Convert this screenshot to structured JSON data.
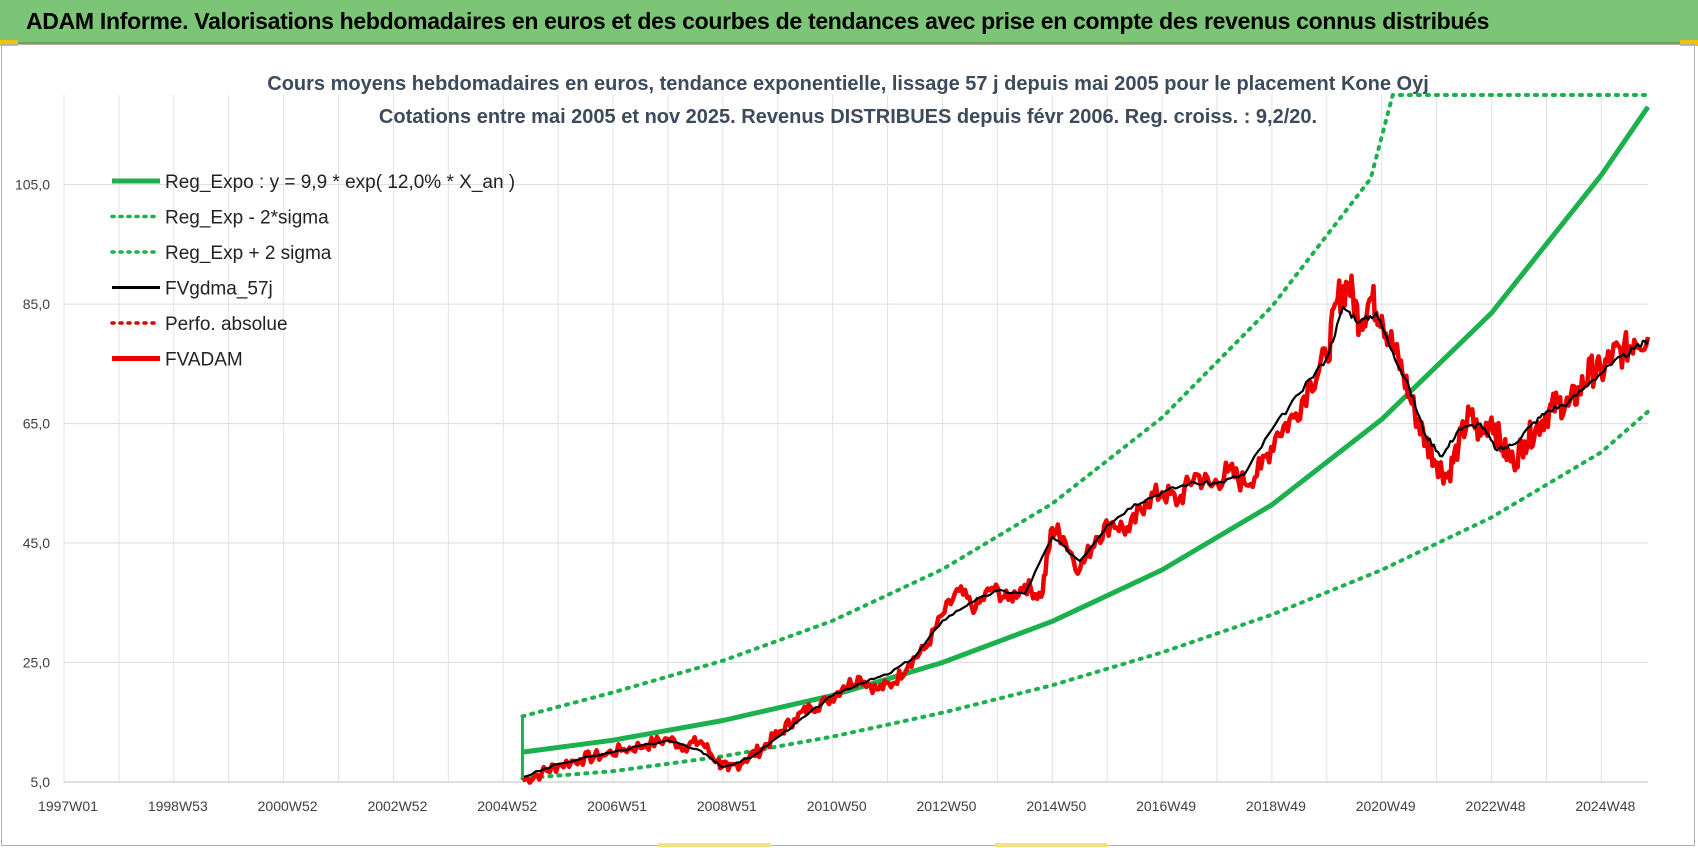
{
  "header": {
    "title": "ADAM Informe. Valorisations hebdomadaires en euros et des courbes de tendances avec prise en compte des revenus connus distribués"
  },
  "chart_data": {
    "type": "line",
    "title_lines": [
      "Cours moyens hebdomadaires en euros, tendance exponentielle, lissage 57 j depuis mai 2005 pour le placement Kone Oyj",
      "Cotations entre mai 2005 et nov 2025. Revenus DISTRIBUES depuis févr 2006. Reg. croiss. : 9,2/20."
    ],
    "xlabel": "",
    "ylabel": "",
    "x_range": [
      1997.0,
      2025.85
    ],
    "ylim": [
      5.0,
      120.0
    ],
    "y_ticks": [
      "105,0",
      "85,0",
      "65,0",
      "45,0",
      "25,0",
      "5,0"
    ],
    "y_tick_values": [
      105,
      85,
      65,
      45,
      25,
      5
    ],
    "x_ticks": [
      "1997W01",
      "1998W53",
      "2000W52",
      "2002W52",
      "2004W52",
      "2006W51",
      "2008W51",
      "2010W50",
      "2012W50",
      "2014W50",
      "2016W49",
      "2018W49",
      "2020W49",
      "2022W48",
      "2024W48"
    ],
    "x_tick_values": [
      1997,
      1999,
      2001,
      2003,
      2005,
      2007,
      2009,
      2011,
      2013,
      2015,
      2017,
      2019,
      2021,
      2023,
      2025
    ],
    "grid": "vertical-and-horizontal",
    "legend_position": "top-left",
    "legend": [
      {
        "label": "Reg_Expo : y = 9,9 * exp( 12,0% *  X_an )",
        "color": "#1db04e",
        "style": "solid-thick"
      },
      {
        "label": "Reg_Exp - 2*sigma",
        "color": "#1db04e",
        "style": "dotted"
      },
      {
        "label": "Reg_Exp + 2 sigma",
        "color": "#1db04e",
        "style": "dotted"
      },
      {
        "label": "FVgdma_57j",
        "color": "#000000",
        "style": "solid"
      },
      {
        "label": "Perfo. absolue",
        "color": "#e00000",
        "style": "dotted"
      },
      {
        "label": "FVADAM",
        "color": "#ee0000",
        "style": "solid-thick"
      }
    ],
    "series": [
      {
        "name": "Reg_Expo : y = 9,9 * exp( 12,0% *  X_an )",
        "color": "#1db04e",
        "x": [
          2005.35,
          2007.0,
          2009.0,
          2011.0,
          2013.0,
          2015.0,
          2017.0,
          2019.0,
          2021.0,
          2023.0,
          2025.0,
          2025.85
        ],
        "values": [
          10.0,
          12.0,
          15.3,
          19.5,
          25.0,
          31.9,
          40.5,
          51.4,
          65.7,
          83.5,
          106.6,
          118.0
        ]
      },
      {
        "name": "Reg_Exp - 2*sigma",
        "color": "#1db04e",
        "x": [
          2005.35,
          2007.0,
          2009.0,
          2011.0,
          2013.0,
          2015.0,
          2017.0,
          2019.0,
          2021.0,
          2023.0,
          2025.0,
          2025.85
        ],
        "values": [
          5.6,
          6.8,
          9.3,
          12.6,
          16.6,
          21.2,
          26.7,
          33.0,
          40.5,
          49.3,
          60.2,
          67.0
        ]
      },
      {
        "name": "Reg_Exp + 2 sigma",
        "color": "#1db04e",
        "x": [
          2005.35,
          2007.0,
          2009.0,
          2011.0,
          2013.0,
          2015.0,
          2017.0,
          2019.0,
          2020.8,
          2021.2,
          2025.85
        ],
        "values": [
          16.0,
          20.0,
          25.3,
          32.0,
          40.6,
          51.6,
          66.0,
          84.6,
          106.0,
          120.0,
          120.0
        ]
      },
      {
        "name": "FVgdma_57j",
        "color": "#000000",
        "x": [
          2005.35,
          2006.0,
          2007.0,
          2008.0,
          2008.6,
          2009.0,
          2009.5,
          2010.0,
          2010.5,
          2011.0,
          2011.5,
          2012.0,
          2012.5,
          2013.0,
          2013.5,
          2014.0,
          2014.5,
          2015.0,
          2015.5,
          2016.0,
          2016.5,
          2017.0,
          2017.5,
          2018.0,
          2018.5,
          2019.0,
          2019.5,
          2020.0,
          2020.3,
          2020.6,
          2020.9,
          2021.2,
          2021.5,
          2021.8,
          2022.1,
          2022.4,
          2022.8,
          2023.1,
          2023.4,
          2023.7,
          2024.0,
          2024.4,
          2024.8,
          2025.2,
          2025.6,
          2025.85
        ],
        "values": [
          5.8,
          8.0,
          10.0,
          12.0,
          10.2,
          7.5,
          9.0,
          12.5,
          16.0,
          19.5,
          21.5,
          23.0,
          26.0,
          32.0,
          35.0,
          37.0,
          36.5,
          46.0,
          42.0,
          48.0,
          51.5,
          53.5,
          55.0,
          55.0,
          56.5,
          64.0,
          70.0,
          76.0,
          84.5,
          82.0,
          83.5,
          77.0,
          71.0,
          63.0,
          59.5,
          64.0,
          65.0,
          60.5,
          61.5,
          64.5,
          67.0,
          68.5,
          72.0,
          75.0,
          77.5,
          79.0
        ]
      },
      {
        "name": "FVADAM",
        "color": "#ee0000",
        "x": [
          2005.35,
          2005.7,
          2006.0,
          2006.4,
          2006.8,
          2007.2,
          2007.6,
          2008.0,
          2008.3,
          2008.6,
          2008.9,
          2009.1,
          2009.4,
          2009.7,
          2010.0,
          2010.3,
          2010.6,
          2010.9,
          2011.2,
          2011.5,
          2011.8,
          2012.1,
          2012.4,
          2012.7,
          2013.0,
          2013.3,
          2013.6,
          2013.9,
          2014.2,
          2014.5,
          2014.8,
          2015.0,
          2015.2,
          2015.5,
          2015.8,
          2016.1,
          2016.4,
          2016.7,
          2017.0,
          2017.3,
          2017.6,
          2017.9,
          2018.2,
          2018.5,
          2018.8,
          2019.1,
          2019.4,
          2019.7,
          2020.0,
          2020.2,
          2020.4,
          2020.6,
          2020.8,
          2021.0,
          2021.2,
          2021.4,
          2021.6,
          2021.8,
          2022.0,
          2022.2,
          2022.4,
          2022.6,
          2022.8,
          2023.0,
          2023.2,
          2023.4,
          2023.6,
          2023.8,
          2024.0,
          2024.2,
          2024.4,
          2024.6,
          2024.8,
          2025.0,
          2025.2,
          2025.4,
          2025.6,
          2025.85
        ],
        "values": [
          5.3,
          6.5,
          7.8,
          8.8,
          9.5,
          10.5,
          11.2,
          12.2,
          11.0,
          11.8,
          8.5,
          7.0,
          8.8,
          10.5,
          13.0,
          15.5,
          17.5,
          18.5,
          21.0,
          22.5,
          20.5,
          21.5,
          25.0,
          27.5,
          33.0,
          37.0,
          34.0,
          37.5,
          35.5,
          38.0,
          36.0,
          47.5,
          46.0,
          40.5,
          46.0,
          48.5,
          47.0,
          52.0,
          53.5,
          52.0,
          56.5,
          54.5,
          57.0,
          55.0,
          57.5,
          63.5,
          66.0,
          72.0,
          76.0,
          86.0,
          88.5,
          82.0,
          86.0,
          83.0,
          78.0,
          73.0,
          67.0,
          62.0,
          58.5,
          56.0,
          61.5,
          66.5,
          63.0,
          66.0,
          61.0,
          58.5,
          62.0,
          64.0,
          66.5,
          68.5,
          68.0,
          70.5,
          74.0,
          73.5,
          76.5,
          77.0,
          79.0,
          79.5
        ]
      }
    ]
  }
}
